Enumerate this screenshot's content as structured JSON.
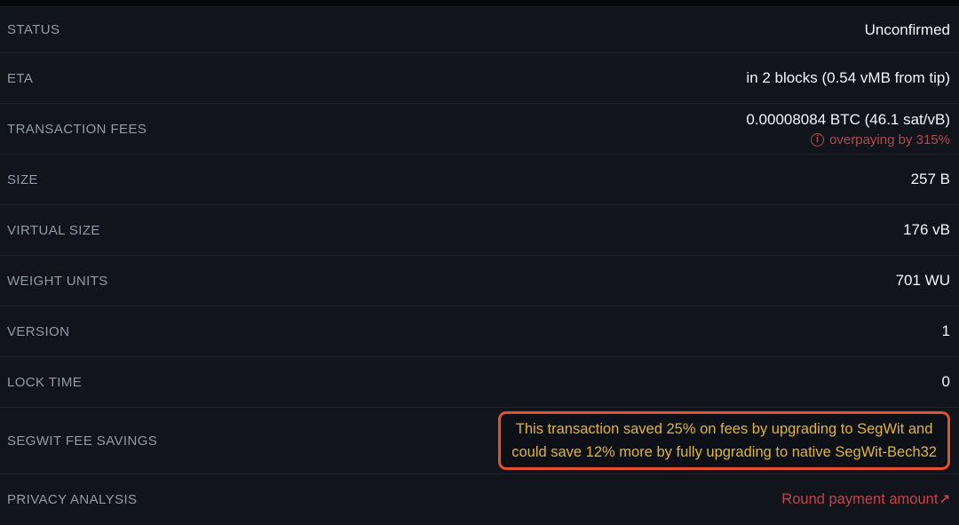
{
  "colors": {
    "background": "#11141b",
    "top_strip": "#05070b",
    "label": "#929ba9",
    "value": "#f3f4f6",
    "warning_red": "#b14a51",
    "privacy_red": "#c2434b",
    "segwit_border_orange": "#e5512d",
    "segwit_text_gold": "#e2b62e"
  },
  "rows": {
    "status": {
      "label": "STATUS",
      "value": "Unconfirmed"
    },
    "eta": {
      "label": "ETA",
      "value": "in 2 blocks (0.54 vMB from tip)"
    },
    "fees": {
      "label": "TRANSACTION FEES",
      "value": "0.00008084 BTC (46.1 sat/vB)",
      "warning_icon": "i",
      "warning": "overpaying by 315%"
    },
    "size": {
      "label": "SIZE",
      "value": "257 B"
    },
    "virtual_size": {
      "label": "VIRTUAL SIZE",
      "value": "176 vB"
    },
    "weight_units": {
      "label": "WEIGHT UNITS",
      "value": "701 WU"
    },
    "version": {
      "label": "VERSION",
      "value": "1"
    },
    "lock_time": {
      "label": "LOCK TIME",
      "value": "0"
    },
    "segwit": {
      "label": "SEGWIT FEE SAVINGS",
      "line1": "This transaction saved 25% on fees by upgrading to SegWit and",
      "line2": "could save 12% more by fully upgrading to native SegWit-Bech32"
    },
    "privacy": {
      "label": "PRIVACY ANALYSIS",
      "link": "Round payment amount",
      "link_icon": "↗"
    }
  }
}
